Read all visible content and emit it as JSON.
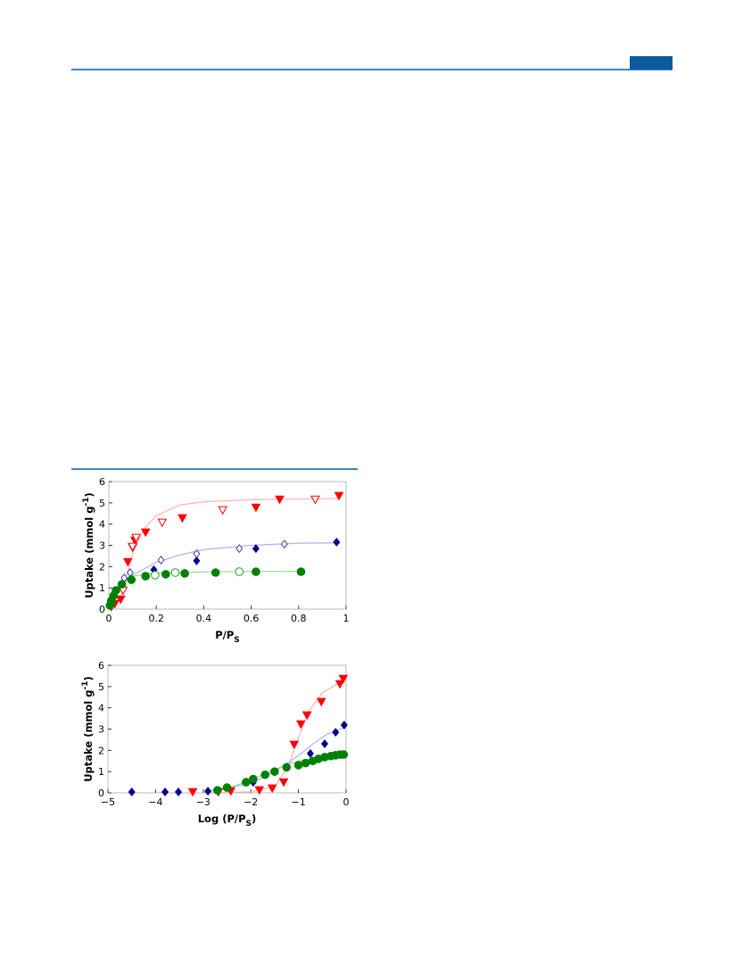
{
  "chart_data": [
    {
      "type": "scatter",
      "xlabel": "P/P",
      "xlabel_sub": "S",
      "ylabel": "Uptake (mmol g",
      "ylabel_sup": "-1",
      "ylabel_end": ")",
      "xlim": [
        0,
        1
      ],
      "xticks": [
        0,
        0.2,
        0.4,
        0.6,
        0.8,
        1
      ],
      "ylim": [
        0,
        6
      ],
      "yticks": [
        0,
        1,
        2,
        3,
        4,
        5,
        6
      ],
      "series": [
        {
          "style": "line",
          "color": "#ffb0b0",
          "x": [
            0,
            0.05,
            0.1,
            0.15,
            0.2,
            0.3,
            0.4,
            0.6,
            0.8,
            0.97
          ],
          "values": [
            0,
            0.6,
            2.6,
            3.8,
            4.4,
            4.9,
            5.05,
            5.15,
            5.18,
            5.2
          ]
        },
        {
          "style": "line",
          "color": "#b0b0f0",
          "x": [
            0,
            0.05,
            0.1,
            0.2,
            0.3,
            0.4,
            0.6,
            0.8,
            0.97
          ],
          "values": [
            0,
            1.1,
            1.6,
            2.2,
            2.55,
            2.8,
            3.0,
            3.1,
            3.12
          ]
        },
        {
          "style": "line",
          "color": "#90dd90",
          "x": [
            0,
            0.02,
            0.05,
            0.1,
            0.2,
            0.4,
            0.6,
            0.81
          ],
          "values": [
            0,
            0.8,
            1.3,
            1.55,
            1.7,
            1.75,
            1.77,
            1.78
          ]
        },
        {
          "style": "marker",
          "marker": "triangle-down",
          "filled": true,
          "color": "#ff0000",
          "x": [
            0.97,
            0.72,
            0.62,
            0.31,
            0.155,
            0.11,
            0.1,
            0.08,
            0.05,
            0.025,
            0.01
          ],
          "values": [
            5.33,
            5.16,
            4.78,
            4.28,
            3.61,
            3.23,
            2.9,
            2.22,
            0.46,
            0.25,
            0.1
          ]
        },
        {
          "style": "marker",
          "marker": "triangle-down",
          "filled": false,
          "color": "#ff0000",
          "x": [
            0.87,
            0.48,
            0.225,
            0.115,
            0.1,
            0.06
          ],
          "values": [
            5.16,
            4.66,
            4.07,
            3.36,
            2.94,
            0.88
          ]
        },
        {
          "style": "marker",
          "marker": "diamond",
          "filled": true,
          "color": "#00008b",
          "x": [
            0.96,
            0.62,
            0.37,
            0.19
          ],
          "values": [
            3.15,
            2.85,
            2.27,
            1.85
          ]
        },
        {
          "style": "marker",
          "marker": "diamond",
          "filled": false,
          "color": "#4040a0",
          "x": [
            0.74,
            0.55,
            0.37,
            0.22,
            0.09,
            0.065
          ],
          "values": [
            3.06,
            2.85,
            2.6,
            2.31,
            1.72,
            1.47
          ]
        },
        {
          "style": "marker",
          "marker": "circle",
          "filled": true,
          "color": "#008000",
          "x": [
            0.81,
            0.62,
            0.45,
            0.32,
            0.24,
            0.155,
            0.095,
            0.055,
            0.03,
            0.02,
            0.01,
            0.005
          ],
          "values": [
            1.76,
            1.76,
            1.72,
            1.68,
            1.64,
            1.55,
            1.38,
            1.17,
            0.88,
            0.63,
            0.38,
            0.17
          ]
        },
        {
          "style": "marker",
          "marker": "circle",
          "filled": false,
          "color": "#20a020",
          "x": [
            0.55,
            0.28,
            0.195
          ],
          "values": [
            1.76,
            1.72,
            1.6
          ]
        }
      ]
    },
    {
      "type": "scatter",
      "xlabel": "Log (P/P",
      "xlabel_sub": "S",
      "xlabel_end": ")",
      "ylabel": "Uptake (mmol g",
      "ylabel_sup": "-1",
      "ylabel_end": ")",
      "xlim": [
        -5,
        0
      ],
      "xticks": [
        {
          "value": -5,
          "label": "−5"
        },
        {
          "value": -4,
          "label": "−4"
        },
        {
          "value": -3,
          "label": "−3"
        },
        {
          "value": -2,
          "label": "−2"
        },
        {
          "value": -1,
          "label": "−1"
        },
        0
      ],
      "ylim": [
        0,
        6
      ],
      "yticks": [
        0,
        1,
        2,
        3,
        4,
        5,
        6
      ],
      "series": [
        {
          "style": "line",
          "color": "#ffb0b0",
          "x": [
            -3,
            -2,
            -1.5,
            -1.2,
            -1,
            -0.8,
            -0.5,
            -0.2,
            0
          ],
          "values": [
            0,
            0.05,
            0.3,
            1.3,
            2.6,
            3.8,
            4.7,
            5.1,
            5.2
          ]
        },
        {
          "style": "line",
          "color": "#b0b0f0",
          "x": [
            -3,
            -2,
            -1.5,
            -1.2,
            -1,
            -0.7,
            -0.4,
            0
          ],
          "values": [
            0.02,
            0.45,
            1.0,
            1.45,
            1.75,
            2.3,
            2.75,
            3.12
          ]
        },
        {
          "style": "line",
          "color": "#90dd90",
          "x": [
            -3,
            -2.5,
            -2,
            -1.5,
            -1.2,
            -1,
            -0.5,
            0
          ],
          "values": [
            0.05,
            0.2,
            0.6,
            1.1,
            1.35,
            1.5,
            1.7,
            1.78
          ]
        },
        {
          "style": "marker",
          "marker": "triangle-down",
          "filled": true,
          "color": "#ff0000",
          "x": [
            -0.06,
            -0.13,
            -0.52,
            -0.82,
            -0.95,
            -1.09,
            -1.31,
            -1.55,
            -1.82,
            -2.42,
            -2.68,
            -3.22
          ],
          "values": [
            5.37,
            5.12,
            4.28,
            3.65,
            3.23,
            2.27,
            0.5,
            0.21,
            0.13,
            0.08,
            0.04,
            0.04
          ]
        },
        {
          "style": "marker",
          "marker": "diamond",
          "filled": true,
          "color": "#00008b",
          "x": [
            -0.04,
            -0.22,
            -0.45,
            -0.75,
            -1.95,
            -2.9,
            -3.52,
            -3.8,
            -4.5
          ],
          "values": [
            3.19,
            2.85,
            2.31,
            1.85,
            0.5,
            0.08,
            0.04,
            0.04,
            0.04
          ]
        },
        {
          "style": "marker",
          "marker": "circle",
          "filled": true,
          "color": "#008000",
          "x": [
            -0.05,
            -0.13,
            -0.22,
            -0.32,
            -0.45,
            -0.58,
            -0.7,
            -0.85,
            -1.0,
            -1.25,
            -1.5,
            -1.7,
            -1.95,
            -2.1,
            -2.5,
            -2.7
          ],
          "values": [
            1.8,
            1.8,
            1.77,
            1.73,
            1.68,
            1.6,
            1.5,
            1.4,
            1.3,
            1.2,
            1.0,
            0.85,
            0.65,
            0.5,
            0.25,
            0.12
          ]
        }
      ]
    }
  ]
}
